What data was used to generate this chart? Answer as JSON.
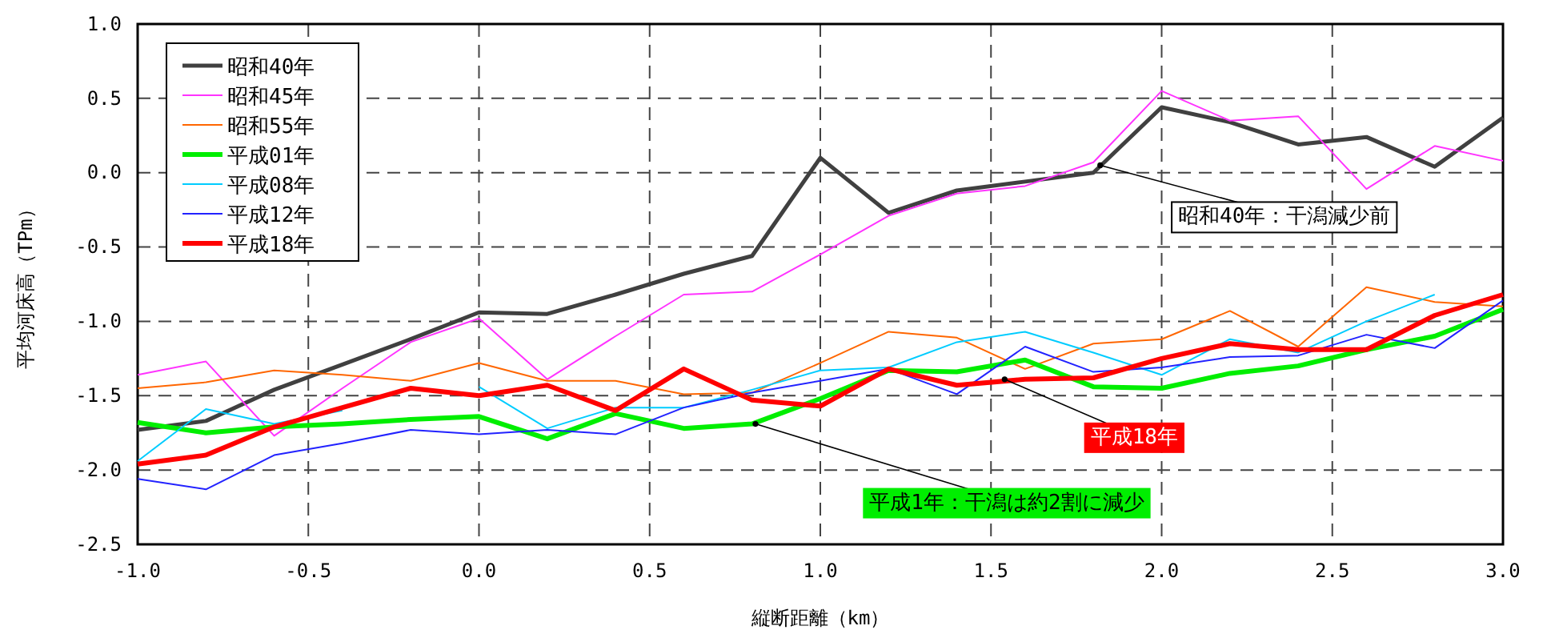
{
  "chart_data": {
    "type": "line",
    "xlabel": "縦断距離（km）",
    "ylabel": "平均河床高（TPm）",
    "x": [
      -1.0,
      -0.8,
      -0.6,
      -0.4,
      -0.2,
      0.0,
      0.2,
      0.4,
      0.6,
      0.8,
      1.0,
      1.2,
      1.4,
      1.6,
      1.8,
      2.0,
      2.2,
      2.4,
      2.6,
      2.8,
      3.0
    ],
    "series": [
      {
        "name": "昭和40年",
        "color": "#404040",
        "values": [
          -1.73,
          -1.67,
          -1.46,
          -1.29,
          -1.12,
          -0.94,
          -0.95,
          -0.82,
          -0.68,
          -0.56,
          0.1,
          -0.27,
          -0.12,
          -0.06,
          0.0,
          0.44,
          0.34,
          0.19,
          0.24,
          0.04,
          0.37
        ]
      },
      {
        "name": "昭和45年",
        "color": "#ff33ff",
        "values": [
          -1.36,
          -1.27,
          -1.77,
          -1.45,
          -1.14,
          -0.98,
          -1.39,
          -1.1,
          -0.82,
          -0.8,
          -0.55,
          -0.29,
          -0.14,
          -0.09,
          0.07,
          0.55,
          0.35,
          0.38,
          -0.11,
          0.18,
          0.08
        ]
      },
      {
        "name": "昭和55年",
        "color": "#ff6600",
        "values": [
          -1.45,
          -1.41,
          -1.33,
          -1.36,
          -1.4,
          -1.28,
          -1.4,
          -1.4,
          -1.49,
          -1.48,
          -1.28,
          -1.07,
          -1.11,
          -1.32,
          -1.15,
          -1.12,
          -0.93,
          -1.17,
          -0.77,
          -0.87,
          -0.9
        ]
      },
      {
        "name": "平成01年",
        "color": "#00ee00",
        "values": [
          -1.68,
          -1.75,
          -1.71,
          -1.69,
          -1.66,
          -1.64,
          -1.79,
          -1.62,
          -1.72,
          -1.69,
          -1.52,
          -1.33,
          -1.34,
          -1.26,
          -1.44,
          -1.45,
          -1.35,
          -1.3,
          -1.19,
          -1.1,
          -0.92
        ]
      },
      {
        "name": "平成08年",
        "color": "#00ccff",
        "values": [
          -1.94,
          -1.59,
          -1.69,
          -1.6,
          null,
          -1.44,
          -1.72,
          -1.58,
          -1.58,
          -1.46,
          -1.33,
          -1.31,
          -1.14,
          -1.07,
          -1.21,
          -1.36,
          -1.12,
          -1.21,
          -1.0,
          -0.82,
          null
        ]
      },
      {
        "name": "平成12年",
        "color": "#2222ff",
        "values": [
          -2.06,
          -2.13,
          -1.9,
          -1.82,
          -1.73,
          -1.76,
          -1.73,
          -1.76,
          -1.58,
          -1.48,
          -1.4,
          -1.32,
          -1.49,
          -1.17,
          -1.34,
          -1.31,
          -1.24,
          -1.23,
          -1.09,
          -1.18,
          -0.86
        ]
      },
      {
        "name": "平成18年",
        "color": "#ff0000",
        "values": [
          -1.96,
          -1.9,
          -1.71,
          -1.58,
          -1.45,
          -1.5,
          -1.43,
          -1.6,
          -1.32,
          -1.53,
          -1.57,
          -1.32,
          -1.43,
          -1.39,
          -1.38,
          -1.25,
          -1.15,
          -1.19,
          -1.19,
          -0.96,
          -0.82
        ]
      }
    ],
    "xlim": [
      -1.0,
      3.0
    ],
    "ylim": [
      -2.5,
      1.0
    ],
    "xticks": [
      {
        "value": -1.0,
        "label": "-1.0"
      },
      {
        "value": -0.5,
        "label": "-0.5"
      },
      {
        "value": 0,
        "label": "0.0"
      },
      {
        "value": 0.5,
        "label": "0.5"
      },
      {
        "value": 1,
        "label": "1.0"
      },
      {
        "value": 1.5,
        "label": "1.5"
      },
      {
        "value": 2,
        "label": "2.0"
      },
      {
        "value": 2.5,
        "label": "2.5"
      },
      {
        "value": 3,
        "label": "3.0"
      }
    ],
    "yticks": [
      {
        "value": -2.5,
        "label": "-2.5"
      },
      {
        "value": -2,
        "label": "-2.0"
      },
      {
        "value": -1.5,
        "label": "-1.5"
      },
      {
        "value": -1,
        "label": "-1.0"
      },
      {
        "value": -0.5,
        "label": "-0.5"
      },
      {
        "value": 0,
        "label": "0.0"
      },
      {
        "value": 0.5,
        "label": "0.5"
      },
      {
        "value": 1,
        "label": "1.0"
      }
    ],
    "grid": true,
    "legend": "top left",
    "marker": "none",
    "line_style": "solid",
    "annotations": [
      {
        "text": "昭和40年：干潟減少前",
        "x": 1.82,
        "y": 0.05
      },
      {
        "text": "平成18年",
        "x": 1.54,
        "y": -1.39
      },
      {
        "text": "平成1年：干潟は約2割に減少",
        "x": 0.81,
        "y": -1.69
      }
    ]
  }
}
